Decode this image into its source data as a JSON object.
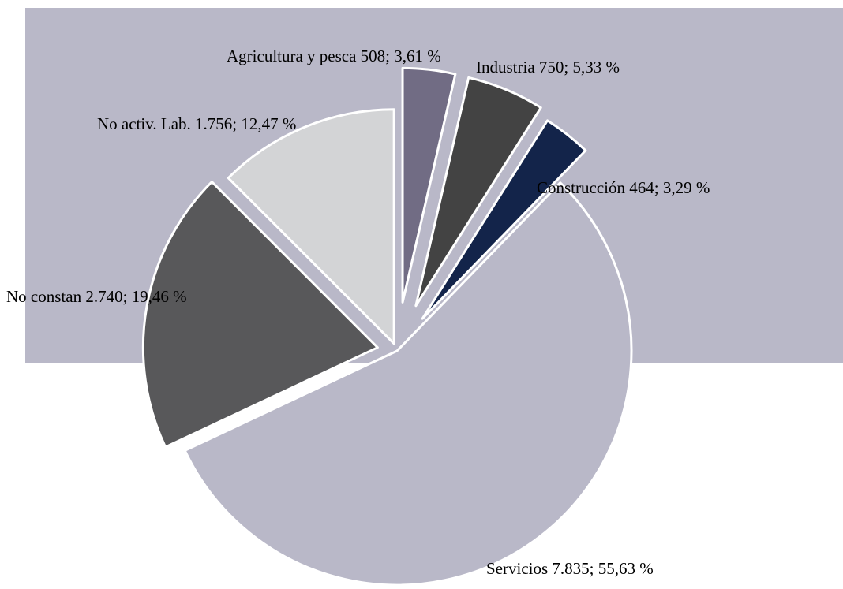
{
  "chart_data": {
    "type": "pie",
    "title": "",
    "legend": "none",
    "plot_background": "#b9b8c8",
    "slices": [
      {
        "category": "Agricultura y pesca",
        "value": 508,
        "percent": 3.61,
        "label": "Agricultura y pesca 508; 3,61 %",
        "color": "#716c84"
      },
      {
        "category": "Industria",
        "value": 750,
        "percent": 5.33,
        "label": "Industria 750; 5,33 %",
        "color": "#434343"
      },
      {
        "category": "Construcción",
        "value": 464,
        "percent": 3.29,
        "label": "Construcción 464; 3,29 %",
        "color": "#13244a"
      },
      {
        "category": "Servicios",
        "value": 7835,
        "percent": 55.63,
        "label": "Servicios 7.835; 55,63 %",
        "color": "#b9b8c8"
      },
      {
        "category": "No constan",
        "value": 2740,
        "percent": 19.46,
        "label": "No constan 2.740; 19,46 %",
        "color": "#58585a"
      },
      {
        "category": "No activ. Lab.",
        "value": 1756,
        "percent": 12.47,
        "label": "No activ. Lab. 1.756; 12,47 %",
        "color": "#d3d4d6"
      }
    ]
  }
}
